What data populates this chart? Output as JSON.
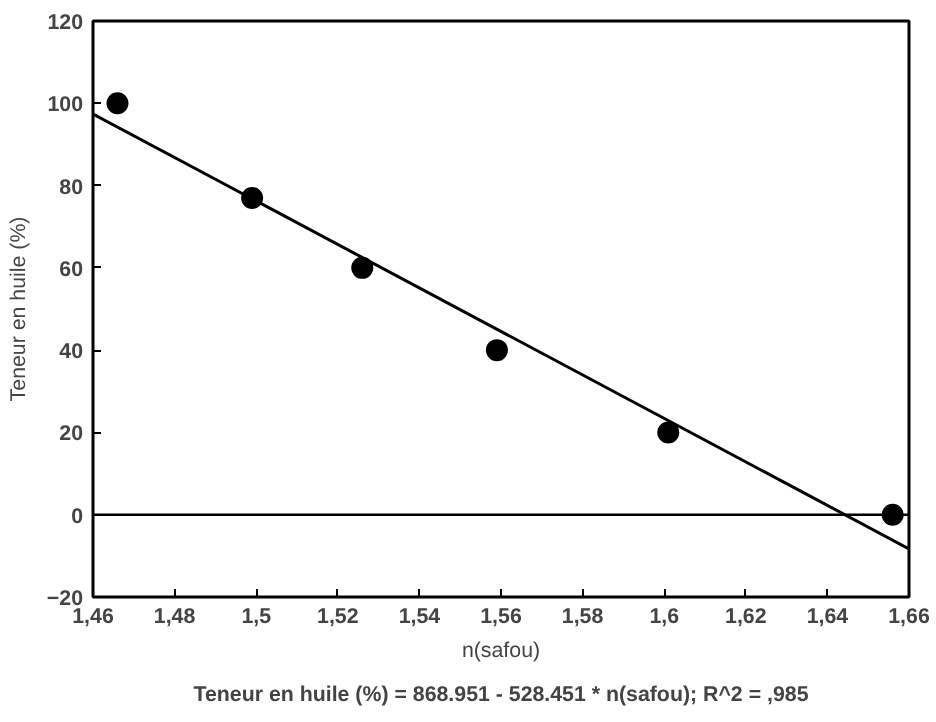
{
  "chart_data": {
    "type": "scatter",
    "xlabel": "n(safou)",
    "ylabel": "Teneur en huile (%)",
    "annotations": [
      "Teneur en huile (%) = 868.951 - 528.451 * n(safou); R^2 = ,985"
    ],
    "xlim": [
      1.46,
      1.66
    ],
    "ylim": [
      -20,
      120
    ],
    "xticks": [
      {
        "value": 1.46,
        "label": "1,46"
      },
      {
        "value": 1.48,
        "label": "1,48"
      },
      {
        "value": 1.5,
        "label": "1,5"
      },
      {
        "value": 1.52,
        "label": "1,52"
      },
      {
        "value": 1.54,
        "label": "1,54"
      },
      {
        "value": 1.56,
        "label": "1,56"
      },
      {
        "value": 1.58,
        "label": "1,58"
      },
      {
        "value": 1.6,
        "label": "1,6"
      },
      {
        "value": 1.62,
        "label": "1,62"
      },
      {
        "value": 1.64,
        "label": "1,64"
      },
      {
        "value": 1.66,
        "label": "1,66"
      }
    ],
    "yticks": [
      -20,
      0,
      20,
      40,
      60,
      80,
      100,
      120
    ],
    "grid": false,
    "ref_lines": [
      {
        "axis": "y",
        "value": 0,
        "color": "#000000"
      }
    ],
    "series": [
      {
        "marker": "circle",
        "color": "#000000",
        "x": [
          1.466,
          1.499,
          1.526,
          1.559,
          1.601,
          1.656
        ],
        "values": [
          100,
          77,
          60,
          40,
          20,
          0
        ]
      },
      {
        "type": "line",
        "color": "#000000",
        "x": [
          1.46,
          1.66
        ],
        "values": [
          97.4,
          -8.3
        ]
      }
    ]
  }
}
